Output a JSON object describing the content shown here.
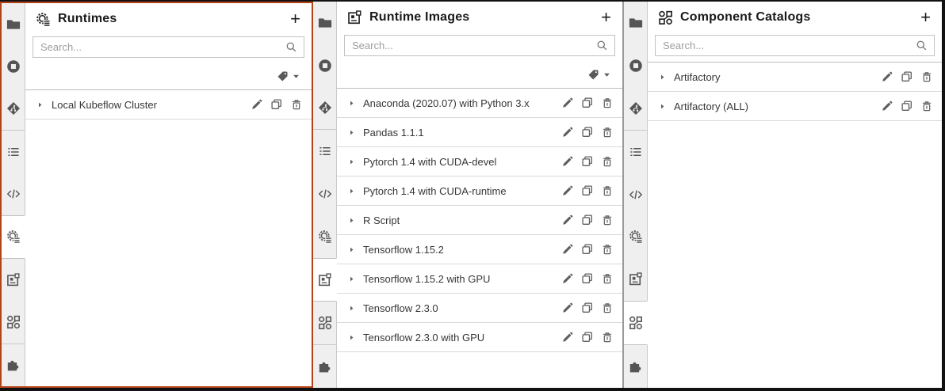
{
  "colors": {
    "highlight_border": "#b5431a",
    "sidebar_bg": "#efefef",
    "panel_bg": "#ffffff",
    "border": "#bdbdbd",
    "row_border": "#d9d9d9",
    "title": "#1a1a1a",
    "text": "#363636",
    "placeholder": "#9e9e9e",
    "frame": "#111111",
    "window_divider": "#9a9a9a"
  },
  "icons": {
    "legend": "semantic icon names used across the UI",
    "header": [
      "runtimes-icon",
      "runtime-images-icon",
      "component-catalogs-icon"
    ],
    "sidebar": [
      "file-browser-icon",
      "running-sessions-icon",
      "git-icon",
      "table-of-contents-icon",
      "code-snippets-icon",
      "runtimes-icon",
      "runtime-images-icon",
      "component-catalogs-icon",
      "extensions-icon"
    ],
    "row_actions": [
      "edit-icon",
      "duplicate-icon",
      "delete-icon"
    ],
    "controls": [
      "search-icon",
      "tag-icon",
      "caret-down-icon",
      "caret-right-icon",
      "add-icon"
    ]
  },
  "sidebar": {
    "tabs": [
      {
        "name": "file-browser",
        "icon": "file-browser-icon"
      },
      {
        "name": "running-sessions",
        "icon": "running-sessions-icon"
      },
      {
        "name": "git",
        "icon": "git-icon",
        "group_end": true
      },
      {
        "name": "table-of-contents",
        "icon": "table-of-contents-icon"
      },
      {
        "name": "code-snippets",
        "icon": "code-snippets-icon"
      },
      {
        "name": "runtimes",
        "icon": "runtimes-icon"
      },
      {
        "name": "runtime-images",
        "icon": "runtime-images-icon"
      },
      {
        "name": "component-catalogs",
        "icon": "component-catalogs-icon",
        "group_end": true
      },
      {
        "name": "extensions",
        "icon": "extensions-icon"
      }
    ]
  },
  "panels": [
    {
      "title": "Runtimes",
      "icon": "runtimes-icon",
      "active_tab": "runtimes",
      "highlighted": true,
      "add_label": "+",
      "search_placeholder": "Search...",
      "has_tag_filter": true,
      "items": [
        {
          "label": "Local Kubeflow Cluster"
        }
      ]
    },
    {
      "title": "Runtime Images",
      "icon": "runtime-images-icon",
      "active_tab": "runtime-images",
      "highlighted": false,
      "add_label": "+",
      "search_placeholder": "Search...",
      "has_tag_filter": true,
      "items": [
        {
          "label": "Anaconda (2020.07) with Python 3.x"
        },
        {
          "label": "Pandas 1.1.1"
        },
        {
          "label": "Pytorch 1.4 with CUDA-devel"
        },
        {
          "label": "Pytorch 1.4 with CUDA-runtime"
        },
        {
          "label": "R Script"
        },
        {
          "label": "Tensorflow 1.15.2"
        },
        {
          "label": "Tensorflow 1.15.2 with GPU"
        },
        {
          "label": "Tensorflow 2.3.0"
        },
        {
          "label": "Tensorflow 2.3.0 with GPU"
        }
      ]
    },
    {
      "title": "Component Catalogs",
      "icon": "component-catalogs-icon",
      "active_tab": "component-catalogs",
      "highlighted": false,
      "add_label": "+",
      "search_placeholder": "Search...",
      "has_tag_filter": false,
      "items": [
        {
          "label": "Artifactory"
        },
        {
          "label": "Artifactory (ALL)"
        }
      ]
    }
  ]
}
